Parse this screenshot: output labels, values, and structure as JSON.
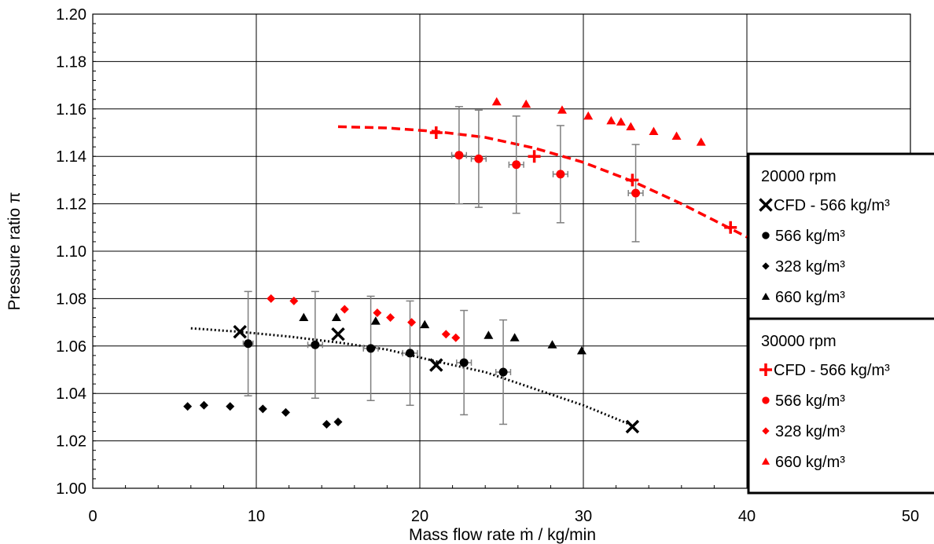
{
  "chart_data": {
    "type": "scatter",
    "xlabel": "Mass flow rate ṁ / kg/min",
    "ylabel": "Pressure ratio π",
    "xlim": [
      0,
      50
    ],
    "ylim": [
      1.0,
      1.2
    ],
    "x_ticks": [
      "0",
      "10",
      "20",
      "30",
      "40",
      "50"
    ],
    "y_ticks": [
      "1.00",
      "1.02",
      "1.04",
      "1.06",
      "1.08",
      "1.10",
      "1.12",
      "1.14",
      "1.16",
      "1.18",
      "1.20"
    ],
    "grid": true,
    "colors": {
      "black": "#000000",
      "red": "#ff0000",
      "errorbar": "#7f7f7f"
    },
    "legend_groups": [
      {
        "title": "20000 rpm",
        "entries": [
          {
            "marker": "x",
            "color": "#000000",
            "label": "CFD - 566 kg/m³"
          },
          {
            "marker": "circle",
            "color": "#000000",
            "label": "566 kg/m³"
          },
          {
            "marker": "diamond",
            "color": "#000000",
            "label": "328 kg/m³"
          },
          {
            "marker": "triangle",
            "color": "#000000",
            "label": "660 kg/m³"
          }
        ]
      },
      {
        "title": "30000 rpm",
        "entries": [
          {
            "marker": "plus",
            "color": "#ff0000",
            "label": "CFD - 566 kg/m³"
          },
          {
            "marker": "circle",
            "color": "#ff0000",
            "label": "566 kg/m³"
          },
          {
            "marker": "diamond",
            "color": "#ff0000",
            "label": "328 kg/m³"
          },
          {
            "marker": "triangle",
            "color": "#ff0000",
            "label": "660 kg/m³"
          }
        ]
      }
    ],
    "series": [
      {
        "group": "20000 rpm",
        "label": "CFD - 566 kg/m³",
        "marker": "x",
        "color": "#000000",
        "x": [
          9,
          15,
          21,
          33
        ],
        "y": [
          1.066,
          1.065,
          1.052,
          1.026
        ]
      },
      {
        "group": "20000 rpm",
        "label": "566 kg/m³",
        "marker": "circle",
        "color": "#000000",
        "x": [
          9.5,
          13.6,
          17,
          19.4,
          22.7,
          25.1
        ],
        "y": [
          1.061,
          1.0605,
          1.059,
          1.057,
          1.053,
          1.049
        ],
        "y_err": [
          0.022,
          0.0225,
          0.022,
          0.022,
          0.022,
          0.022
        ],
        "x_err": [
          0.3,
          0.45,
          0.45,
          0.45,
          0.45,
          0.45
        ]
      },
      {
        "group": "20000 rpm",
        "label": "328 kg/m³",
        "marker": "diamond",
        "color": "#000000",
        "x": [
          5.8,
          6.8,
          8.4,
          10.4,
          11.8,
          14.3,
          15
        ],
        "y": [
          1.0345,
          1.035,
          1.0345,
          1.0335,
          1.032,
          1.027,
          1.028
        ]
      },
      {
        "group": "20000 rpm",
        "label": "660 kg/m³",
        "marker": "triangle",
        "color": "#000000",
        "x": [
          12.9,
          14.9,
          17.3,
          20.3,
          24.2,
          25.8,
          28.1,
          29.9
        ],
        "y": [
          1.072,
          1.072,
          1.0705,
          1.069,
          1.0645,
          1.0635,
          1.0605,
          1.058
        ]
      },
      {
        "group": "30000 rpm",
        "label": "CFD - 566 kg/m³",
        "marker": "plus",
        "color": "#ff0000",
        "x": [
          21,
          27,
          33,
          39
        ],
        "y": [
          1.15,
          1.14,
          1.13,
          1.11
        ]
      },
      {
        "group": "30000 rpm",
        "label": "566 kg/m³",
        "marker": "circle",
        "color": "#ff0000",
        "x": [
          22.4,
          23.6,
          25.9,
          28.6,
          33.2
        ],
        "y": [
          1.1405,
          1.139,
          1.1365,
          1.1325,
          1.1245
        ],
        "y_err": [
          0.0205,
          0.0205,
          0.0205,
          0.0205,
          0.0205
        ],
        "x_err": [
          0.45,
          0.45,
          0.45,
          0.45,
          0.45
        ]
      },
      {
        "group": "30000 rpm",
        "label": "328 kg/m³",
        "marker": "diamond",
        "color": "#ff0000",
        "x": [
          10.9,
          12.3,
          15.4,
          17.4,
          18.2,
          19.5,
          21.6,
          22.2
        ],
        "y": [
          1.08,
          1.079,
          1.0755,
          1.074,
          1.072,
          1.07,
          1.065,
          1.0635
        ]
      },
      {
        "group": "30000 rpm",
        "label": "660 kg/m³",
        "marker": "triangle",
        "color": "#ff0000",
        "x": [
          24.7,
          26.5,
          28.7,
          30.3,
          31.7,
          32.3,
          32.9,
          34.3,
          35.7,
          37.2
        ],
        "y": [
          1.163,
          1.162,
          1.1595,
          1.157,
          1.155,
          1.1545,
          1.1525,
          1.1505,
          1.1485,
          1.146
        ]
      }
    ],
    "trendlines": [
      {
        "group": "20000 rpm",
        "style": "dotted",
        "color": "#000000",
        "x": [
          6,
          9,
          12,
          15,
          18,
          21,
          24,
          27,
          30,
          33
        ],
        "y": [
          1.0675,
          1.066,
          1.064,
          1.0615,
          1.0585,
          1.0535,
          1.049,
          1.042,
          1.035,
          1.0265
        ]
      },
      {
        "group": "30000 rpm",
        "style": "dashed",
        "color": "#ff0000",
        "x": [
          15,
          18,
          21,
          24,
          27,
          30,
          33,
          36,
          38,
          40
        ],
        "y": [
          1.1525,
          1.152,
          1.1505,
          1.148,
          1.1435,
          1.1375,
          1.1295,
          1.12,
          1.113,
          1.106
        ]
      }
    ]
  }
}
